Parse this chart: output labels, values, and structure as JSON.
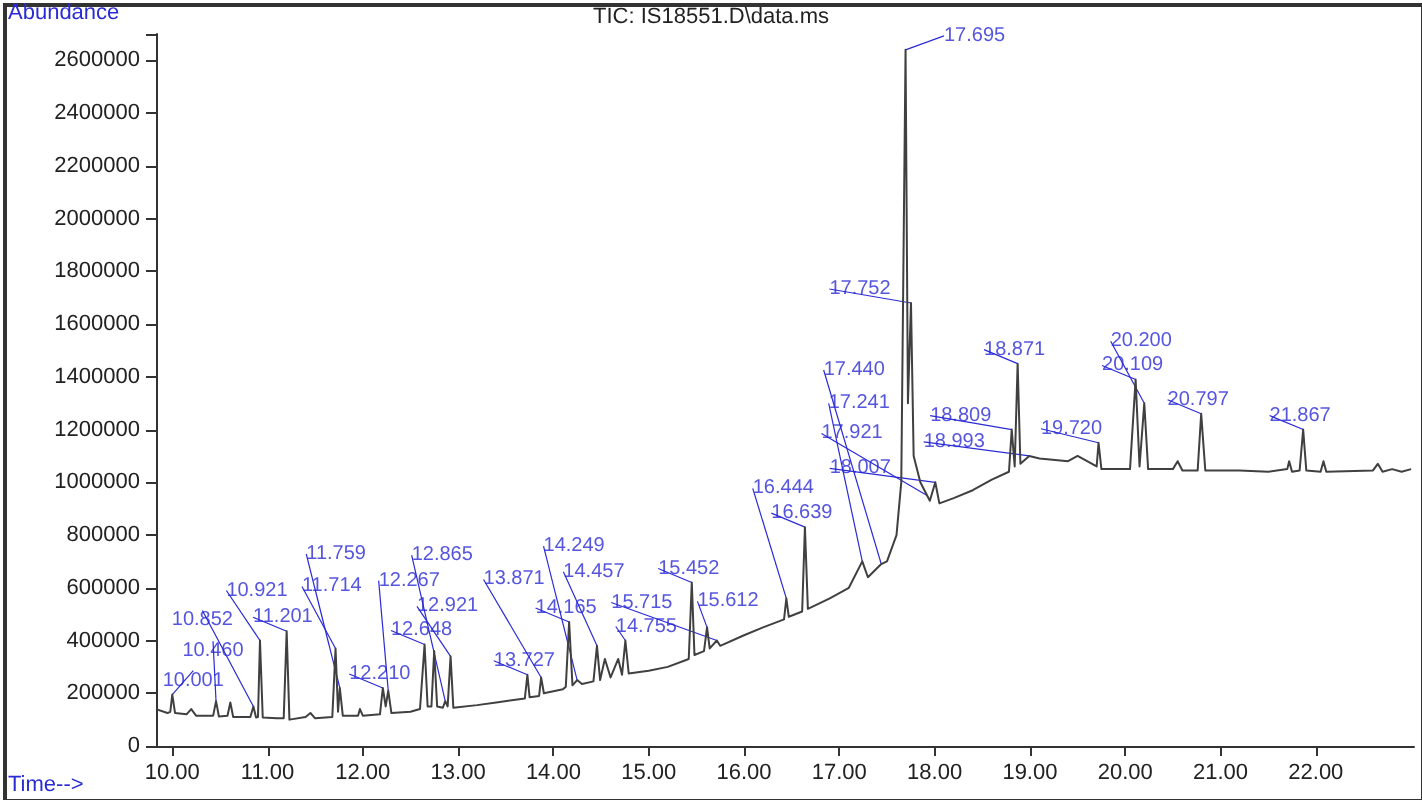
{
  "chart_data": {
    "type": "line",
    "title": "TIC: IS18551.D\\data.ms",
    "xlabel": "Time-->",
    "ylabel": "Abundance",
    "x": [
      9.83,
      9.95,
      9.98,
      10.001,
      10.03,
      10.15,
      10.2,
      10.25,
      10.43,
      10.46,
      10.49,
      10.58,
      10.61,
      10.64,
      10.82,
      10.852,
      10.88,
      10.9,
      10.921,
      10.95,
      11.1,
      11.17,
      11.201,
      11.23,
      11.4,
      11.45,
      11.5,
      11.68,
      11.714,
      11.74,
      11.759,
      11.79,
      11.95,
      11.97,
      12.0,
      12.18,
      12.21,
      12.24,
      12.267,
      12.3,
      12.5,
      12.6,
      12.648,
      12.68,
      12.72,
      12.749,
      12.78,
      12.84,
      12.865,
      12.89,
      12.921,
      12.95,
      13.2,
      13.4,
      13.7,
      13.727,
      13.75,
      13.85,
      13.871,
      13.9,
      14.1,
      14.13,
      14.165,
      14.2,
      14.249,
      14.3,
      14.42,
      14.457,
      14.49,
      14.54,
      14.6,
      14.68,
      14.72,
      14.755,
      14.79,
      15.0,
      15.2,
      15.42,
      15.452,
      15.48,
      15.58,
      15.612,
      15.64,
      15.715,
      15.75,
      16.0,
      16.2,
      16.42,
      16.444,
      16.47,
      16.61,
      16.639,
      16.67,
      16.9,
      17.1,
      17.241,
      17.3,
      17.44,
      17.5,
      17.6,
      17.65,
      17.695,
      17.72,
      17.752,
      17.78,
      17.85,
      17.921,
      17.95,
      18.007,
      18.05,
      18.2,
      18.4,
      18.6,
      18.78,
      18.809,
      18.84,
      18.871,
      18.9,
      18.993,
      19.1,
      19.4,
      19.5,
      19.7,
      19.72,
      19.75,
      20.05,
      20.109,
      20.15,
      20.2,
      20.24,
      20.5,
      20.55,
      20.6,
      20.76,
      20.797,
      20.84,
      21.2,
      21.5,
      21.7,
      21.72,
      21.75,
      21.83,
      21.867,
      21.9,
      22.05,
      22.08,
      22.11,
      22.6,
      22.65,
      22.7,
      22.8,
      22.9,
      23.0
    ],
    "values": [
      140000,
      125000,
      130000,
      195000,
      125000,
      120000,
      140000,
      115000,
      115000,
      170000,
      112000,
      115000,
      165000,
      110000,
      110000,
      150000,
      108000,
      110000,
      400000,
      108000,
      105000,
      105000,
      435000,
      100000,
      110000,
      125000,
      105000,
      110000,
      370000,
      130000,
      220000,
      115000,
      115000,
      140000,
      115000,
      120000,
      220000,
      150000,
      210000,
      125000,
      130000,
      140000,
      385000,
      150000,
      150000,
      360000,
      150000,
      145000,
      170000,
      150000,
      340000,
      145000,
      155000,
      165000,
      180000,
      270000,
      185000,
      190000,
      260000,
      200000,
      215000,
      225000,
      470000,
      230000,
      250000,
      235000,
      245000,
      380000,
      250000,
      330000,
      260000,
      330000,
      270000,
      400000,
      275000,
      285000,
      300000,
      330000,
      620000,
      345000,
      360000,
      450000,
      370000,
      400000,
      380000,
      420000,
      450000,
      480000,
      560000,
      490000,
      510000,
      830000,
      520000,
      560000,
      600000,
      700000,
      640000,
      690000,
      700000,
      800000,
      1000000,
      2640000,
      1300000,
      1680000,
      1100000,
      1000000,
      950000,
      930000,
      1000000,
      920000,
      940000,
      970000,
      1010000,
      1040000,
      1200000,
      1060000,
      1450000,
      1070000,
      1100000,
      1090000,
      1080000,
      1100000,
      1060000,
      1150000,
      1050000,
      1050000,
      1390000,
      1060000,
      1300000,
      1050000,
      1050000,
      1080000,
      1045000,
      1045000,
      1260000,
      1045000,
      1045000,
      1040000,
      1050000,
      1080000,
      1040000,
      1045000,
      1200000,
      1045000,
      1040000,
      1080000,
      1040000,
      1045000,
      1070000,
      1040000,
      1050000,
      1040000,
      1050000
    ],
    "color": "#404040",
    "marker": "none",
    "xlim": [
      9.83,
      23.03
    ],
    "ylim": [
      0,
      2700000
    ],
    "xticks": [
      {
        "value": 10,
        "label": "10.00"
      },
      {
        "value": 11,
        "label": "11.00"
      },
      {
        "value": 12,
        "label": "12.00"
      },
      {
        "value": 13,
        "label": "13.00"
      },
      {
        "value": 14,
        "label": "14.00"
      },
      {
        "value": 15,
        "label": "15.00"
      },
      {
        "value": 16,
        "label": "16.00"
      },
      {
        "value": 17,
        "label": "17.00"
      },
      {
        "value": 18,
        "label": "18.00"
      },
      {
        "value": 19,
        "label": "19.00"
      },
      {
        "value": 20,
        "label": "20.00"
      },
      {
        "value": 21,
        "label": "21.00"
      },
      {
        "value": 22,
        "label": "22.00"
      }
    ],
    "yticks": [
      0,
      200000,
      400000,
      600000,
      800000,
      1000000,
      1200000,
      1400000,
      1600000,
      1800000,
      2000000,
      2200000,
      2400000,
      2600000
    ],
    "annotations": [
      {
        "text": "10.001",
        "x": 10.001,
        "y": 195000
      },
      {
        "text": "10.460",
        "x": 10.46,
        "y": 170000
      },
      {
        "text": "10.852",
        "x": 10.852,
        "y": 150000
      },
      {
        "text": "10.921",
        "x": 10.921,
        "y": 400000
      },
      {
        "text": "11.201",
        "x": 11.201,
        "y": 435000
      },
      {
        "text": "11.714",
        "x": 11.714,
        "y": 370000
      },
      {
        "text": "11.759",
        "x": 11.759,
        "y": 220000
      },
      {
        "text": "12.210",
        "x": 12.21,
        "y": 220000
      },
      {
        "text": "12.267",
        "x": 12.267,
        "y": 210000
      },
      {
        "text": "12.648",
        "x": 12.648,
        "y": 385000
      },
      {
        "text": "12.921",
        "x": 12.921,
        "y": 340000
      },
      {
        "text": "12.865",
        "x": 12.865,
        "y": 170000
      },
      {
        "text": "13.727",
        "x": 13.727,
        "y": 270000
      },
      {
        "text": "13.871",
        "x": 13.871,
        "y": 260000
      },
      {
        "text": "14.165",
        "x": 14.165,
        "y": 470000
      },
      {
        "text": "14.249",
        "x": 14.249,
        "y": 250000
      },
      {
        "text": "14.457",
        "x": 14.457,
        "y": 380000
      },
      {
        "text": "14.755",
        "x": 14.755,
        "y": 400000
      },
      {
        "text": "15.452",
        "x": 15.452,
        "y": 620000
      },
      {
        "text": "15.612",
        "x": 15.612,
        "y": 450000
      },
      {
        "text": "15.715",
        "x": 15.715,
        "y": 400000
      },
      {
        "text": "16.444",
        "x": 16.444,
        "y": 560000
      },
      {
        "text": "16.639",
        "x": 16.639,
        "y": 830000
      },
      {
        "text": "17.241",
        "x": 17.241,
        "y": 700000
      },
      {
        "text": "17.440",
        "x": 17.44,
        "y": 690000
      },
      {
        "text": "17.695",
        "x": 17.695,
        "y": 2640000
      },
      {
        "text": "17.752",
        "x": 17.752,
        "y": 1680000
      },
      {
        "text": "17.921",
        "x": 17.921,
        "y": 950000
      },
      {
        "text": "18.007",
        "x": 18.007,
        "y": 1000000
      },
      {
        "text": "18.809",
        "x": 18.809,
        "y": 1200000
      },
      {
        "text": "18.871",
        "x": 18.871,
        "y": 1450000
      },
      {
        "text": "18.993",
        "x": 18.993,
        "y": 1100000
      },
      {
        "text": "19.720",
        "x": 19.72,
        "y": 1150000
      },
      {
        "text": "20.109",
        "x": 20.109,
        "y": 1390000
      },
      {
        "text": "20.200",
        "x": 20.2,
        "y": 1300000
      },
      {
        "text": "20.797",
        "x": 20.797,
        "y": 1260000
      },
      {
        "text": "21.867",
        "x": 21.867,
        "y": 1200000
      }
    ]
  }
}
